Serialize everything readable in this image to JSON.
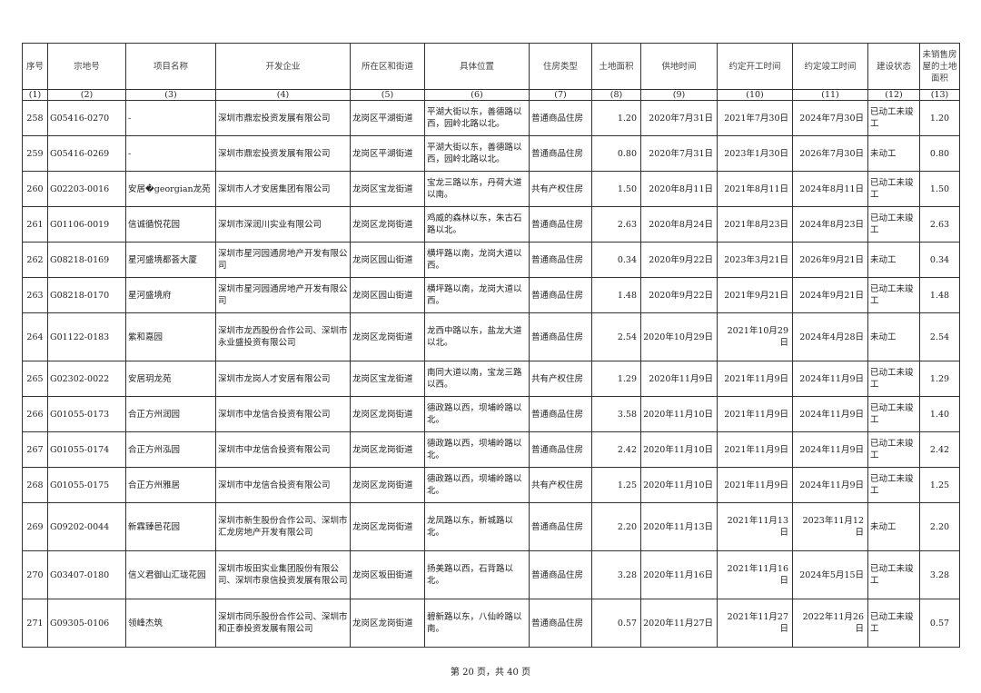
{
  "headers": [
    "序号",
    "宗地号",
    "项目名称",
    "开发企业",
    "所在区和街道",
    "具体位置",
    "住房类型",
    "土地面积",
    "供地时间",
    "约定开工时间",
    "约定竣工时间",
    "建设状态",
    "未销售房屋的土地面积"
  ],
  "column_numbers": [
    "(1)",
    "(2)",
    "(3)",
    "(4)",
    "(5)",
    "(6)",
    "(7)",
    "(8)",
    "(9)",
    "(10)",
    "(11)",
    "(12)",
    "(13)"
  ],
  "rows": [
    {
      "no": "258",
      "parcel": "G05416-0270",
      "project": "-",
      "developer": "深圳市鼎宏投资发展有限公司",
      "district": "龙岗区平湖街道",
      "location": "平湖大街以东，善德路以西，园岭北路以北。",
      "type": "普通商品住房",
      "area": "1.20",
      "supply": "2020年7月31日",
      "start": "2021年7月30日",
      "finish": "2024年7月30日",
      "status": "已动工未竣工",
      "unsold": "1.20"
    },
    {
      "no": "259",
      "parcel": "G05416-0269",
      "project": "-",
      "developer": "深圳市鼎宏投资发展有限公司",
      "district": "龙岗区平湖街道",
      "location": "平湖大街以东，善德路以西，园岭北路以北。",
      "type": "普通商品住房",
      "area": "0.80",
      "supply": "2020年7月31日",
      "start": "2023年1月30日",
      "finish": "2026年7月30日",
      "status": "未动工",
      "unsold": "0.80"
    },
    {
      "no": "260",
      "parcel": "G02203-0016",
      "project": "安居�georgian龙苑",
      "developer": "深圳市人才安居集团有限公司",
      "district": "龙岗区宝龙街道",
      "location": "宝龙三路以东，丹荷大道以南。",
      "type": "共有产权住房",
      "area": "1.50",
      "supply": "2020年8月11日",
      "start": "2021年8月11日",
      "finish": "2024年8月11日",
      "status": "已动工未竣工",
      "unsold": "1.50"
    },
    {
      "no": "261",
      "parcel": "G01106-0019",
      "project": "信诚循悦花园",
      "developer": "深圳市深润川实业有限公司",
      "district": "龙岗区龙岗街道",
      "location": "鸡威的森林以东，朱古石路以北。",
      "type": "普通商品住房",
      "area": "2.63",
      "supply": "2020年8月24日",
      "start": "2021年8月23日",
      "finish": "2024年8月23日",
      "status": "已动工未竣工",
      "unsold": "2.63"
    },
    {
      "no": "262",
      "parcel": "G08218-0169",
      "project": "星河盛境都荟大厦",
      "developer": "深圳市星河园通房地产开发有限公司",
      "district": "龙岗区园山街道",
      "location": "横坪路以南，龙岗大道以西。",
      "type": "普通商品住房",
      "area": "0.34",
      "supply": "2020年9月22日",
      "start": "2023年3月21日",
      "finish": "2026年9月21日",
      "status": "未动工",
      "unsold": "0.34"
    },
    {
      "no": "263",
      "parcel": "G08218-0170",
      "project": "星河盛境府",
      "developer": "深圳市星河园通房地产开发有限公司",
      "district": "龙岗区园山街道",
      "location": "横坪路以南，龙岗大道以西。",
      "type": "普通商品住房",
      "area": "1.48",
      "supply": "2020年9月22日",
      "start": "2021年9月21日",
      "finish": "2024年9月21日",
      "status": "已动工未竣工",
      "unsold": "1.48"
    },
    {
      "no": "264",
      "parcel": "G01122-0183",
      "project": "紫和嘉园",
      "developer": "深圳市龙西股份合作公司、深圳市永业盛投资有限公司",
      "district": "龙岗区龙岗街道",
      "location": "龙西中路以东，盐龙大道以北。",
      "type": "普通商品住房",
      "area": "2.54",
      "supply": "2020年10月29日",
      "start": "2021年10月29日",
      "finish": "2024年4月28日",
      "status": "未动工",
      "unsold": "2.54"
    },
    {
      "no": "265",
      "parcel": "G02302-0022",
      "project": "安居玥龙苑",
      "developer": "深圳市龙岗人才安居有限公司",
      "district": "龙岗区宝龙街道",
      "location": "南同大道以南，宝龙三路以西。",
      "type": "共有产权住房",
      "area": "1.29",
      "supply": "2020年11月9日",
      "start": "2021年11月9日",
      "finish": "2024年11月9日",
      "status": "已动工未竣工",
      "unsold": "1.29"
    },
    {
      "no": "266",
      "parcel": "G01055-0173",
      "project": "合正方州润园",
      "developer": "深圳市中龙信合投资有限公司",
      "district": "龙岗区龙岗街道",
      "location": "德政路以西，坝埔岭路以北。",
      "type": "普通商品住房",
      "area": "3.58",
      "supply": "2020年11月10日",
      "start": "2021年11月9日",
      "finish": "2024年11月9日",
      "status": "已动工未竣工",
      "unsold": "1.40"
    },
    {
      "no": "267",
      "parcel": "G01055-0174",
      "project": "合正方州泓园",
      "developer": "深圳市中龙信合投资有限公司",
      "district": "龙岗区龙岗街道",
      "location": "德政路以西，坝埔岭路以北。",
      "type": "普通商品住房",
      "area": "2.42",
      "supply": "2020年11月10日",
      "start": "2021年11月9日",
      "finish": "2024年11月9日",
      "status": "已动工未竣工",
      "unsold": "2.42"
    },
    {
      "no": "268",
      "parcel": "G01055-0175",
      "project": "合正方州雅居",
      "developer": "深圳市中龙信合投资有限公司",
      "district": "龙岗区龙岗街道",
      "location": "德政路以西，坝埔岭路以北。",
      "type": "共有产权住房",
      "area": "1.25",
      "supply": "2020年11月10日",
      "start": "2021年11月9日",
      "finish": "2024年11月9日",
      "status": "已动工未竣工",
      "unsold": "1.25"
    },
    {
      "no": "269",
      "parcel": "G09202-0044",
      "project": "新霖臻邑花园",
      "developer": "深圳市新生股份合作公司、深圳市汇龙房地产开发有限公司",
      "district": "龙岗区龙岗街道",
      "location": "龙凤路以东，新城路以北。",
      "type": "普通商品住房",
      "area": "2.20",
      "supply": "2020年11月13日",
      "start": "2021年11月13日",
      "finish": "2023年11月12日",
      "status": "未动工",
      "unsold": "2.20"
    },
    {
      "no": "270",
      "parcel": "G03407-0180",
      "project": "信义君御山汇珑花园",
      "developer": "深圳市坂田实业集团股份有限公司、深圳市泉信投资发展有限公司",
      "district": "龙岗区坂田街道",
      "location": "扬美路以西，石背路以北。",
      "type": "普通商品住房",
      "area": "3.28",
      "supply": "2020年11月16日",
      "start": "2021年11月16日",
      "finish": "2024年5月15日",
      "status": "已动工未竣工",
      "unsold": "3.28"
    },
    {
      "no": "271",
      "parcel": "G09305-0106",
      "project": "领峰杰筑",
      "developer": "深圳市同乐股份合作公司、深圳市和正泰投资发展有限公司",
      "district": "龙岗区龙岗街道",
      "location": "碧新路以东，八仙岭路以南。",
      "type": "普通商品住房",
      "area": "0.57",
      "supply": "2020年11月27日",
      "start": "2021年11月27日",
      "finish": "2022年11月26日",
      "status": "已动工未竣工",
      "unsold": "0.57"
    }
  ],
  "footer": "第 20 页，共 40 页"
}
